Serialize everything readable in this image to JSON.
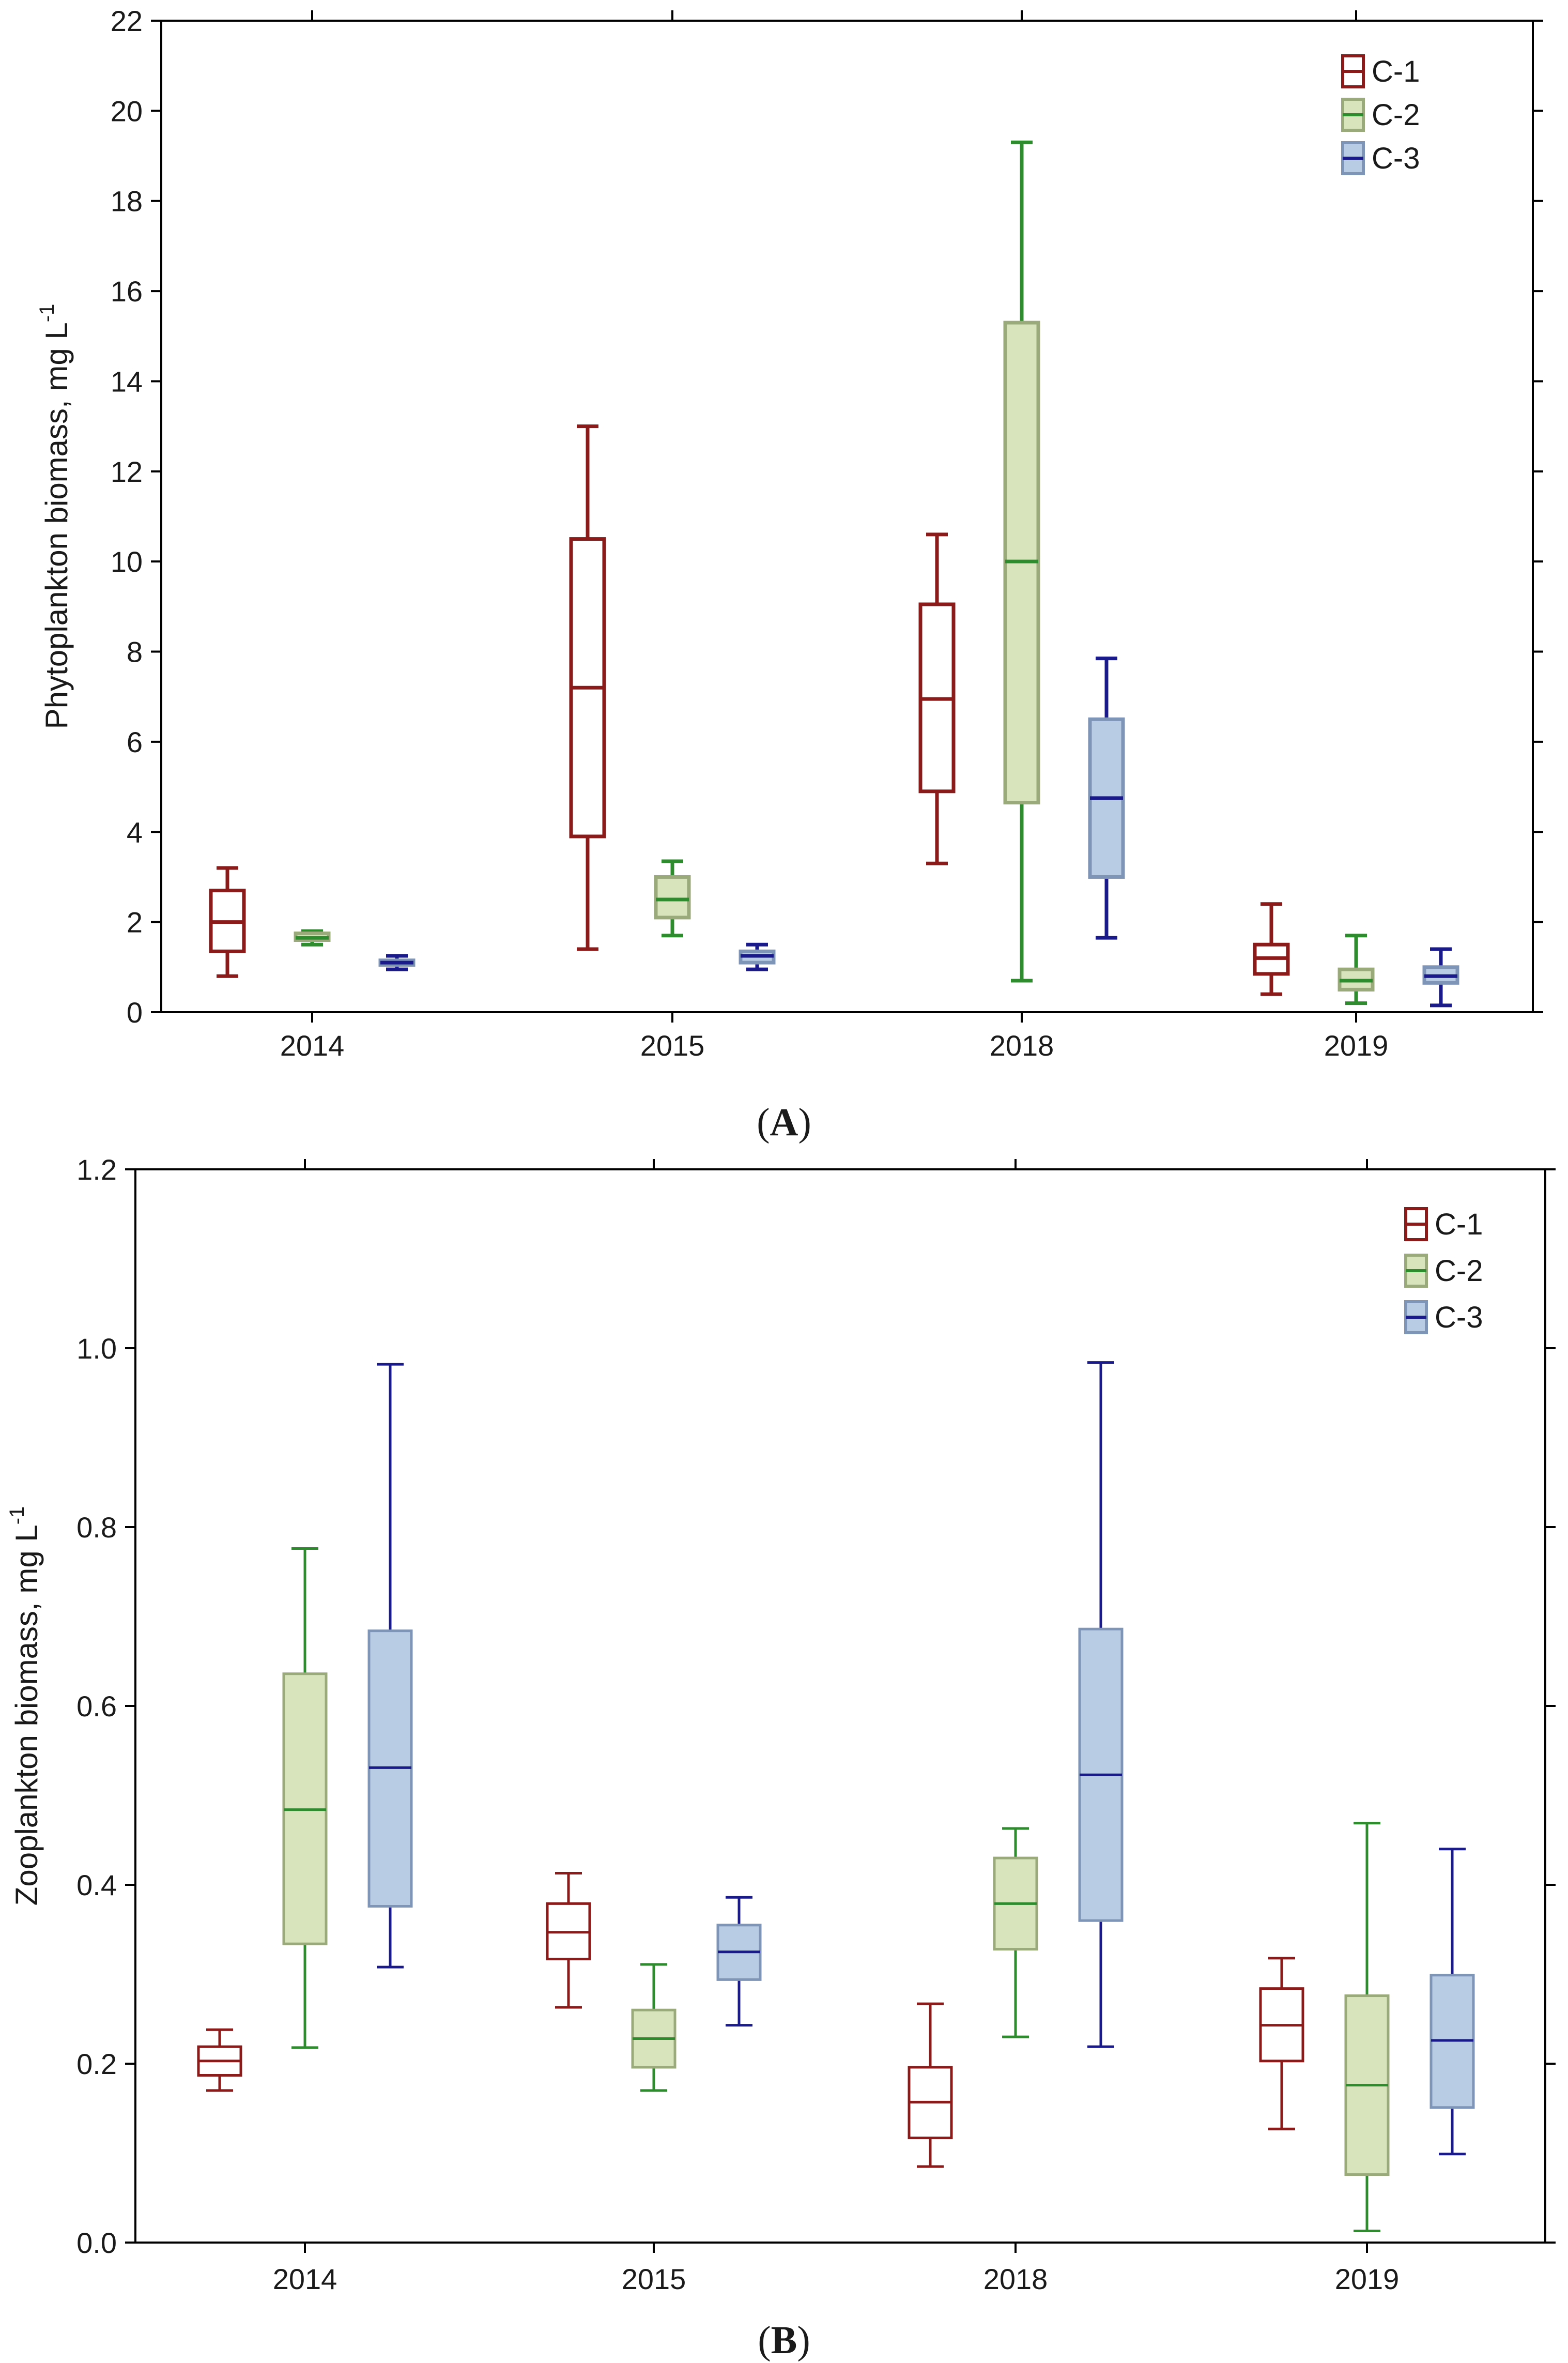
{
  "colors": {
    "C-1": {
      "stroke": "#8b1a1a",
      "fill": "#ffffff"
    },
    "C-2": {
      "stroke": "#2e8b2e",
      "fill": "#d8e4bc"
    },
    "C-3": {
      "stroke": "#1a1a8b",
      "fill": "#b8cce4"
    },
    "C-2-box-border": "#9aaa7a",
    "C-3-box-border": "#7f95b8",
    "axis": "#000000"
  },
  "captions": {
    "A": {
      "open": "(",
      "letter": "A",
      "close": ")"
    },
    "B": {
      "open": "(",
      "letter": "B",
      "close": ")"
    }
  },
  "chart_data": [
    {
      "id": "A",
      "type": "box",
      "title": "",
      "xlabel": "",
      "ylabel": "Phytoplankton biomass, mg L",
      "ylabel_sup": "-1",
      "ylim": [
        0,
        22
      ],
      "yticks": [
        0,
        2,
        4,
        6,
        8,
        10,
        12,
        14,
        16,
        18,
        20,
        22
      ],
      "ytick_labels": [
        "0",
        "2",
        "4",
        "6",
        "8",
        "10",
        "12",
        "14",
        "16",
        "18",
        "20",
        "22"
      ],
      "categories": [
        "2014",
        "2015",
        "2018",
        "2019"
      ],
      "legend": {
        "position": "top-right",
        "entries": [
          "C-1",
          "C-2",
          "C-3"
        ]
      },
      "grid": false,
      "series": [
        {
          "name": "C-1",
          "boxes": [
            {
              "min": 0.8,
              "q1": 1.35,
              "median": 2.0,
              "q3": 2.7,
              "max": 3.2
            },
            {
              "min": 1.4,
              "q1": 3.9,
              "median": 7.2,
              "q3": 10.5,
              "max": 13.0
            },
            {
              "min": 3.3,
              "q1": 4.9,
              "median": 6.95,
              "q3": 9.05,
              "max": 10.6
            },
            {
              "min": 0.4,
              "q1": 0.85,
              "median": 1.2,
              "q3": 1.5,
              "max": 2.4
            }
          ]
        },
        {
          "name": "C-2",
          "boxes": [
            {
              "min": 1.5,
              "q1": 1.6,
              "median": 1.65,
              "q3": 1.75,
              "max": 1.8
            },
            {
              "min": 1.7,
              "q1": 2.1,
              "median": 2.5,
              "q3": 3.0,
              "max": 3.35
            },
            {
              "min": 0.7,
              "q1": 4.65,
              "median": 10.0,
              "q3": 15.3,
              "max": 19.3
            },
            {
              "min": 0.2,
              "q1": 0.5,
              "median": 0.7,
              "q3": 0.95,
              "max": 1.7
            }
          ]
        },
        {
          "name": "C-3",
          "boxes": [
            {
              "min": 0.95,
              "q1": 1.05,
              "median": 1.1,
              "q3": 1.15,
              "max": 1.25
            },
            {
              "min": 0.95,
              "q1": 1.1,
              "median": 1.25,
              "q3": 1.35,
              "max": 1.5
            },
            {
              "min": 1.65,
              "q1": 3.0,
              "median": 4.75,
              "q3": 6.5,
              "max": 7.85
            },
            {
              "min": 0.15,
              "q1": 0.65,
              "median": 0.8,
              "q3": 1.0,
              "max": 1.4
            }
          ]
        }
      ]
    },
    {
      "id": "B",
      "type": "box",
      "title": "",
      "xlabel": "",
      "ylabel": "Zooplankton biomass, mg L",
      "ylabel_sup": "-1",
      "ylim": [
        0,
        1.2
      ],
      "yticks": [
        0,
        0.2,
        0.4,
        0.6,
        0.8,
        1.0,
        1.2
      ],
      "ytick_labels": [
        "0.0",
        "0.2",
        "0.4",
        "0.6",
        "0.8",
        "1.0",
        "1.2"
      ],
      "categories": [
        "2014",
        "2015",
        "2018",
        "2019"
      ],
      "legend": {
        "position": "top-right",
        "entries": [
          "C-1",
          "C-2",
          "C-3"
        ]
      },
      "grid": false,
      "series": [
        {
          "name": "C-1",
          "boxes": [
            {
              "min": 0.17,
              "q1": 0.187,
              "median": 0.203,
              "q3": 0.219,
              "max": 0.238
            },
            {
              "min": 0.263,
              "q1": 0.317,
              "median": 0.347,
              "q3": 0.379,
              "max": 0.413
            },
            {
              "min": 0.085,
              "q1": 0.117,
              "median": 0.157,
              "q3": 0.196,
              "max": 0.267
            },
            {
              "min": 0.127,
              "q1": 0.203,
              "median": 0.243,
              "q3": 0.284,
              "max": 0.318
            }
          ]
        },
        {
          "name": "C-2",
          "boxes": [
            {
              "min": 0.218,
              "q1": 0.334,
              "median": 0.484,
              "q3": 0.636,
              "max": 0.776
            },
            {
              "min": 0.17,
              "q1": 0.196,
              "median": 0.228,
              "q3": 0.26,
              "max": 0.311
            },
            {
              "min": 0.23,
              "q1": 0.328,
              "median": 0.379,
              "q3": 0.43,
              "max": 0.463
            },
            {
              "min": 0.013,
              "q1": 0.076,
              "median": 0.176,
              "q3": 0.276,
              "max": 0.469
            }
          ]
        },
        {
          "name": "C-3",
          "boxes": [
            {
              "min": 0.308,
              "q1": 0.376,
              "median": 0.531,
              "q3": 0.684,
              "max": 0.982
            },
            {
              "min": 0.243,
              "q1": 0.294,
              "median": 0.325,
              "q3": 0.355,
              "max": 0.386
            },
            {
              "min": 0.219,
              "q1": 0.36,
              "median": 0.523,
              "q3": 0.686,
              "max": 0.984
            },
            {
              "min": 0.099,
              "q1": 0.151,
              "median": 0.226,
              "q3": 0.299,
              "max": 0.44
            }
          ]
        }
      ]
    }
  ]
}
